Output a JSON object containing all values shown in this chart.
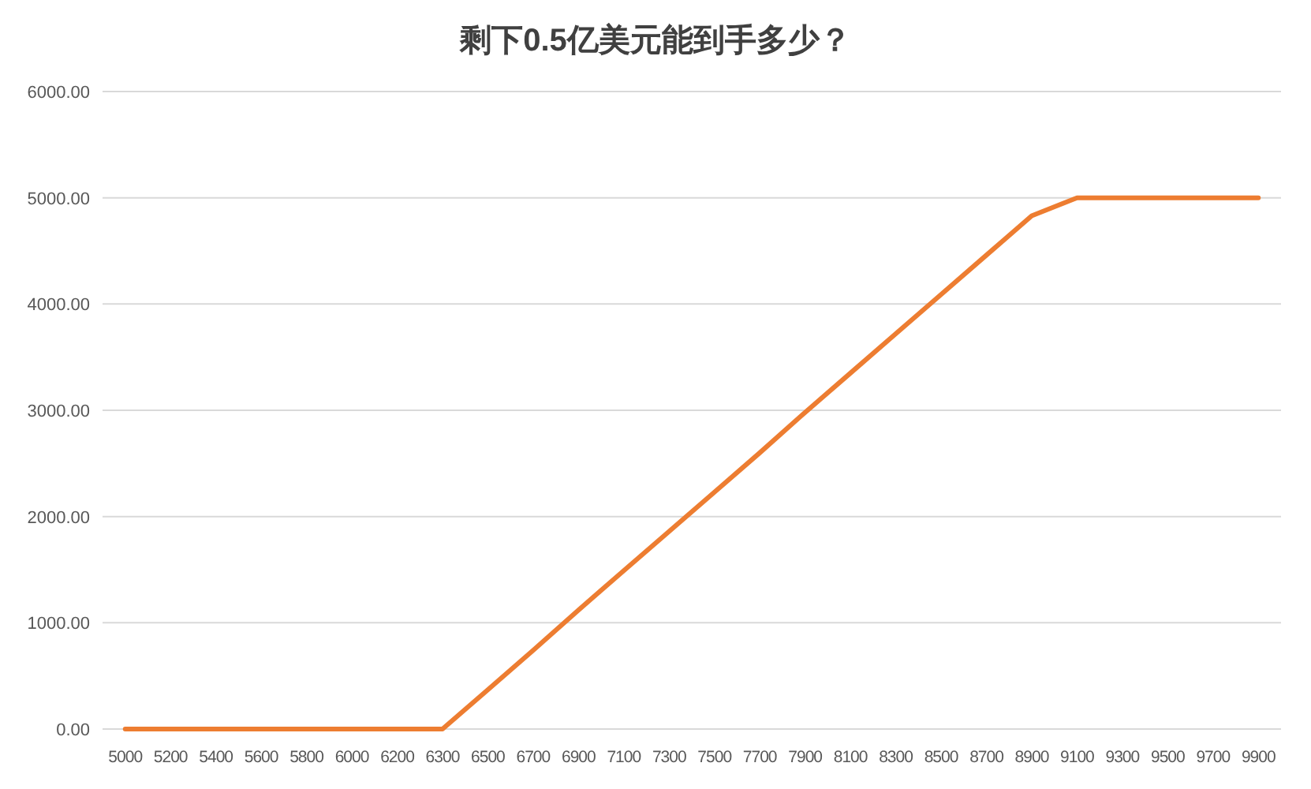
{
  "chart_data": {
    "type": "line",
    "title": "剩下0.5亿美元能到手多少？",
    "categories": [
      "5000",
      "5200",
      "5400",
      "5600",
      "5800",
      "6000",
      "6200",
      "6300",
      "6500",
      "6700",
      "6900",
      "7100",
      "7300",
      "7500",
      "7700",
      "7900",
      "8100",
      "8300",
      "8500",
      "8700",
      "8900",
      "9100",
      "9300",
      "9500",
      "9700",
      "9900"
    ],
    "series": [
      {
        "color": "#ed7d31",
        "values": [
          0,
          0,
          0,
          0,
          0,
          0,
          0,
          0,
          370,
          740,
          1120,
          1490,
          1860,
          2230,
          2600,
          2980,
          3350,
          3720,
          4090,
          4460,
          4830,
          5000,
          5000,
          5000,
          5000,
          5000
        ]
      }
    ],
    "ylim": [
      0,
      6000
    ],
    "yticks": [
      {
        "value": 0,
        "label": "0.00"
      },
      {
        "value": 1000,
        "label": "1000.00"
      },
      {
        "value": 2000,
        "label": "2000.00"
      },
      {
        "value": 3000,
        "label": "3000.00"
      },
      {
        "value": 4000,
        "label": "4000.00"
      },
      {
        "value": 5000,
        "label": "5000.00"
      },
      {
        "value": 6000,
        "label": "6000.00"
      }
    ],
    "grid": "y",
    "marker": "none",
    "line_style": "solid"
  }
}
